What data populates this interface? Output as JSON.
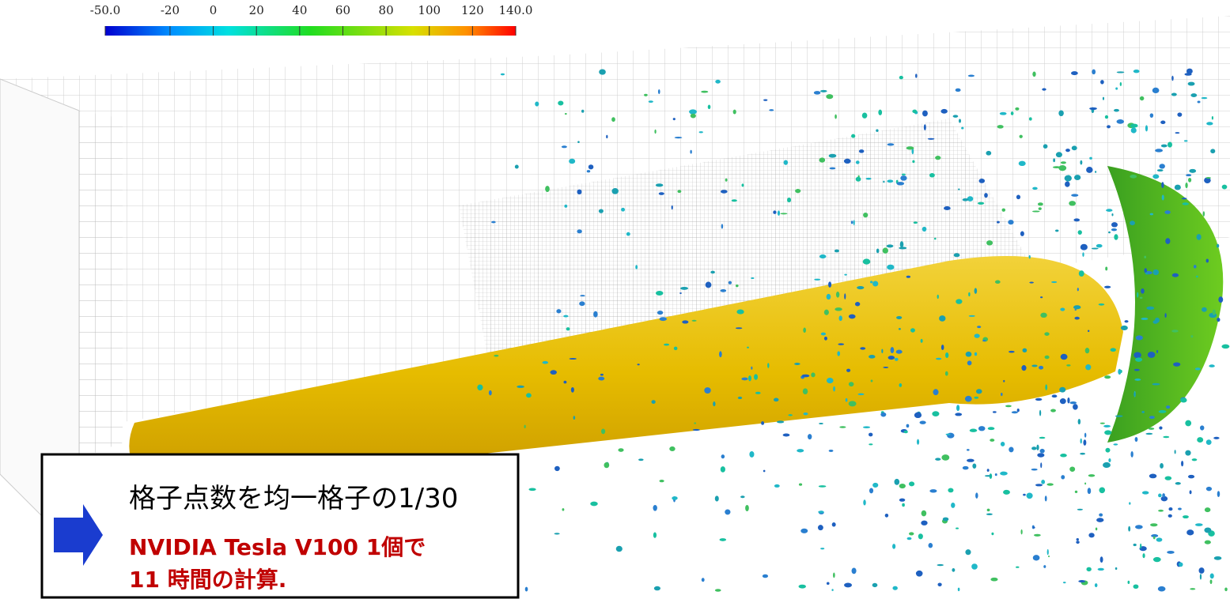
{
  "colorbar": {
    "range": [
      -50,
      140
    ],
    "ticks": [
      {
        "value": -50,
        "label": "-50.0"
      },
      -20,
      0,
      20,
      40,
      60,
      80,
      100,
      120,
      {
        "value": 140,
        "label": "140.0"
      }
    ]
  },
  "caption": {
    "line1": "格子点数を均一格子の1/30",
    "line2": "NVIDIA Tesla V100 1個で",
    "line3": "11 時間の計算."
  }
}
